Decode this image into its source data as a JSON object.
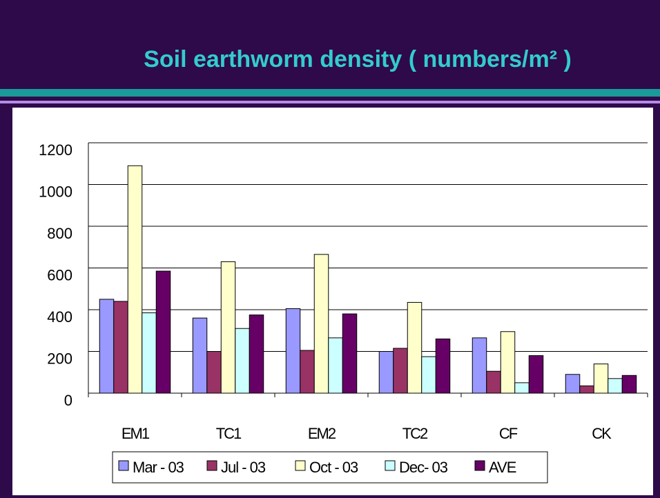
{
  "chart_data": {
    "type": "bar",
    "title": "Soil earthworm density ( numbers/m² )",
    "categories": [
      "EM1",
      "TC1",
      "EM2",
      "TC2",
      "CF",
      "CK"
    ],
    "series": [
      {
        "name": "Mar - 03",
        "color": "#9999ff",
        "values": [
          450,
          360,
          405,
          200,
          265,
          90
        ]
      },
      {
        "name": "Jul - 03",
        "color": "#993366",
        "values": [
          440,
          200,
          205,
          215,
          105,
          35
        ]
      },
      {
        "name": "Oct - 03",
        "color": "#ffffcc",
        "values": [
          1090,
          630,
          665,
          435,
          295,
          140
        ]
      },
      {
        "name": "Dec- 03",
        "color": "#ccffff",
        "values": [
          385,
          310,
          265,
          175,
          50,
          70
        ]
      },
      {
        "name": "AVE",
        "color": "#660066",
        "values": [
          585,
          375,
          380,
          260,
          180,
          85
        ]
      }
    ],
    "ylim": [
      0,
      1200
    ],
    "yticks": [
      0,
      200,
      400,
      600,
      800,
      1000,
      1200
    ],
    "grid": true,
    "legend": "bottom"
  }
}
